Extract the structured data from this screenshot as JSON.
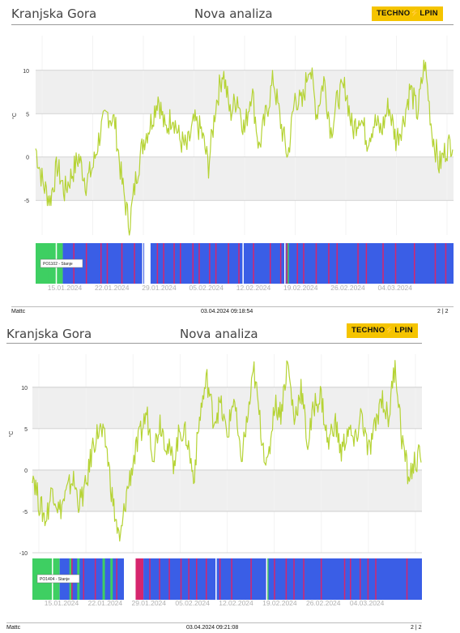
{
  "pages": [
    {
      "location": "Kranjska Gora",
      "title": "Nova analiza",
      "logo_text": "TECHNO⚡LPIN",
      "footer_user": "Mattc",
      "footer_timestamp": "03.04.2024 09:18:54",
      "footer_page": "2 | 2"
    },
    {
      "location": "Kranjska Gora",
      "title": "Nova analiza",
      "logo_text": "TECHNO⚡LPIN",
      "footer_user": "Mattc",
      "footer_timestamp": "03.04.2024 09:21:08",
      "footer_page": "2 | 2"
    }
  ],
  "colors": {
    "line": "#b5d334",
    "band": "#efefef",
    "status_blue": "#3a5ee6",
    "status_green": "#3ecf62",
    "status_red": "#d6266e",
    "logo_bg": "#f5c400"
  },
  "chart_data": [
    {
      "type": "line",
      "ylabel": "°C",
      "ylim": [
        -9,
        14
      ],
      "yticks": [
        -5,
        0,
        5,
        10
      ],
      "x_ticks": [
        "15.01.2024",
        "22.01.2024",
        "29.01.2024",
        "05.02.2024",
        "12.02.2024",
        "19.02.2024",
        "26.02.2024",
        "04.03.2024"
      ],
      "series": [
        {
          "x": [
            "10.01",
            "11.01",
            "12.01",
            "13.01",
            "14.01",
            "15.01",
            "16.01",
            "17.01",
            "18.01",
            "19.01",
            "20.01",
            "21.01",
            "22.01",
            "23.01",
            "24.01",
            "25.01",
            "26.01",
            "27.01",
            "28.01",
            "29.01",
            "30.01",
            "31.01",
            "01.02",
            "02.02",
            "03.02",
            "04.02",
            "05.02",
            "06.02",
            "07.02",
            "08.02",
            "09.02",
            "10.02",
            "11.02",
            "12.02",
            "13.02",
            "14.02",
            "15.02",
            "16.02",
            "17.02",
            "18.02",
            "19.02",
            "20.02",
            "21.02",
            "22.02",
            "23.02",
            "24.02",
            "25.02",
            "26.02",
            "27.02",
            "28.02",
            "29.02",
            "01.03",
            "02.03",
            "03.03",
            "04.03",
            "05.03",
            "06.03",
            "07.03",
            "08.03"
          ],
          "values": [
            1,
            -3,
            -5,
            -1,
            -4,
            -2,
            0,
            -3,
            -1,
            3,
            5,
            4,
            -3,
            -8,
            -2,
            2,
            4,
            7,
            3,
            5,
            2,
            1,
            4,
            3,
            -1,
            6,
            10,
            5,
            7,
            3,
            8,
            1,
            5,
            9,
            4,
            0,
            7,
            6,
            11,
            5,
            9,
            3,
            7,
            8,
            3,
            5,
            2,
            4,
            3,
            6,
            2,
            4,
            8,
            5,
            11,
            3,
            -1,
            1,
            2
          ]
        }
      ],
      "status_bar": {
        "label": "PO1102 - Stanje",
        "segments": [
          {
            "from": 0.0,
            "to": 0.065,
            "state": "green"
          },
          {
            "from": 0.065,
            "to": 0.26,
            "state": "blue"
          },
          {
            "from": 0.26,
            "to": 0.275,
            "state": "white"
          },
          {
            "from": 0.275,
            "to": 1.0,
            "state": "blue"
          }
        ],
        "red_marks": [
          0.09,
          0.12,
          0.155,
          0.17,
          0.205,
          0.235,
          0.29,
          0.305,
          0.33,
          0.345,
          0.375,
          0.39,
          0.415,
          0.43,
          0.46,
          0.485,
          0.52,
          0.56,
          0.585,
          0.6,
          0.625,
          0.64,
          0.67,
          0.7,
          0.72,
          0.77,
          0.79,
          0.83,
          0.86,
          0.905,
          0.955,
          0.98
        ],
        "white_marks": [
          0.048,
          0.255,
          0.495,
          0.595
        ],
        "green_marks": [
          0.03,
          0.055,
          0.6
        ]
      }
    },
    {
      "type": "line",
      "ylabel": "°C",
      "ylim": [
        -10,
        14
      ],
      "yticks": [
        -10,
        -5,
        0,
        5,
        10
      ],
      "x_ticks": [
        "15.01.2024",
        "22.01.2024",
        "29.01.2024",
        "05.02.2024",
        "12.02.2024",
        "19.02.2024",
        "26.02.2024",
        "04.03.2024"
      ],
      "series": [
        {
          "x": [
            "10.01",
            "11.01",
            "12.01",
            "13.01",
            "14.01",
            "15.01",
            "16.01",
            "17.01",
            "18.01",
            "19.01",
            "20.01",
            "21.01",
            "22.01",
            "23.01",
            "24.01",
            "25.01",
            "26.01",
            "27.01",
            "28.01",
            "29.01",
            "30.01",
            "31.01",
            "01.02",
            "02.02",
            "03.02",
            "04.02",
            "05.02",
            "06.02",
            "07.02",
            "08.02",
            "09.02",
            "10.02",
            "11.02",
            "12.02",
            "13.02",
            "14.02",
            "15.02",
            "16.02",
            "17.02",
            "18.02",
            "19.02",
            "20.02",
            "21.02",
            "22.02",
            "23.02",
            "24.02",
            "25.02",
            "26.02",
            "27.02",
            "28.02",
            "29.02",
            "01.03",
            "02.03",
            "03.03",
            "04.03",
            "05.03",
            "06.03",
            "07.03",
            "08.03"
          ],
          "values": [
            0,
            -4,
            -6,
            -2,
            -5,
            -3,
            -1,
            -4,
            -2,
            3,
            5,
            3,
            -4,
            -9,
            -3,
            1,
            4,
            7,
            2,
            6,
            3,
            1,
            5,
            4,
            -1,
            7,
            11,
            6,
            8,
            4,
            9,
            1,
            6,
            12,
            5,
            0,
            8,
            7,
            13,
            6,
            10,
            3,
            8,
            9,
            3,
            6,
            2,
            5,
            3,
            7,
            2,
            5,
            9,
            6,
            13,
            4,
            -1,
            1,
            2
          ]
        }
      ],
      "status_bar": {
        "label": "PO1404 - Stanje",
        "segments": [
          {
            "from": 0.0,
            "to": 0.07,
            "state": "green"
          },
          {
            "from": 0.07,
            "to": 0.235,
            "state": "blue"
          },
          {
            "from": 0.235,
            "to": 0.265,
            "state": "white"
          },
          {
            "from": 0.265,
            "to": 0.285,
            "state": "red"
          },
          {
            "from": 0.285,
            "to": 1.0,
            "state": "blue"
          }
        ],
        "red_marks": [
          0.1,
          0.13,
          0.16,
          0.215,
          0.3,
          0.325,
          0.35,
          0.38,
          0.4,
          0.42,
          0.445,
          0.48,
          0.51,
          0.56,
          0.6,
          0.62,
          0.65,
          0.67,
          0.695,
          0.74,
          0.8,
          0.815,
          0.84,
          0.86,
          0.88,
          0.96
        ],
        "white_marks": [
          0.05,
          0.255,
          0.255,
          0.47,
          0.6
        ],
        "green_marks": [
          0.095,
          0.115,
          0.18,
          0.2,
          0.6
        ]
      }
    }
  ]
}
